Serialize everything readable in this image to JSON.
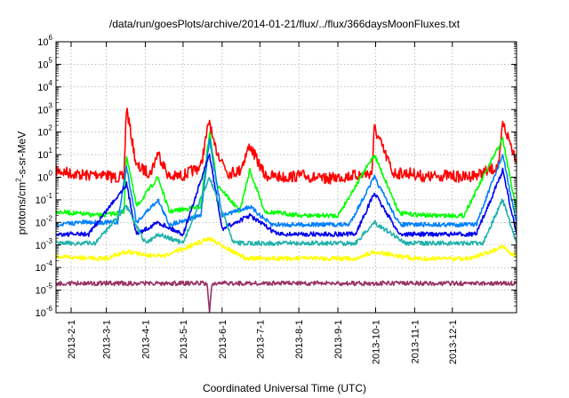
{
  "chart_data": {
    "type": "line",
    "title": "/data/run/goesPlots/archive/2014-01-21/flux/../flux/366daysMoonFluxes.txt",
    "xlabel": "Coordinated Universal Time (UTC)",
    "ylabel": "protons/cm2-s-sr-MeV",
    "ylabel_base": "protons/cm",
    "ylabel_sup": "2",
    "ylabel_rest": "-s-sr-MeV",
    "yscale": "log",
    "ylim": [
      1e-06,
      1000000.0
    ],
    "xlim": [
      "2013-01-20",
      "2014-01-21"
    ],
    "grid": true,
    "y_ticks": [
      {
        "value": 1e-06,
        "base": "10",
        "exp": "-6"
      },
      {
        "value": 1e-05,
        "base": "10",
        "exp": "-5"
      },
      {
        "value": 0.0001,
        "base": "10",
        "exp": "-4"
      },
      {
        "value": 0.001,
        "base": "10",
        "exp": "-3"
      },
      {
        "value": 0.01,
        "base": "10",
        "exp": "-2"
      },
      {
        "value": 0.1,
        "base": "10",
        "exp": "-1"
      },
      {
        "value": 1,
        "base": "10",
        "exp": "0"
      },
      {
        "value": 10,
        "base": "10",
        "exp": "1"
      },
      {
        "value": 100,
        "base": "10",
        "exp": "2"
      },
      {
        "value": 1000,
        "base": "10",
        "exp": "3"
      },
      {
        "value": 10000,
        "base": "10",
        "exp": "4"
      },
      {
        "value": 100000,
        "base": "10",
        "exp": "5"
      },
      {
        "value": 1000000,
        "base": "10",
        "exp": "6"
      }
    ],
    "x_ticks": [
      {
        "date": "2013-02-01",
        "label": "2013-2-1"
      },
      {
        "date": "2013-03-01",
        "label": "2013-3-1"
      },
      {
        "date": "2013-04-01",
        "label": "2013-4-1"
      },
      {
        "date": "2013-05-01",
        "label": "2013-5-1"
      },
      {
        "date": "2013-06-01",
        "label": "2013-6-1"
      },
      {
        "date": "2013-07-01",
        "label": "2013-7-1"
      },
      {
        "date": "2013-08-01",
        "label": "2013-8-1"
      },
      {
        "date": "2013-09-01",
        "label": "2013-9-1"
      },
      {
        "date": "2013-10-01",
        "label": "2013-10-1"
      },
      {
        "date": "2013-11-01",
        "label": "2013-11-1"
      },
      {
        "date": "2013-12-01",
        "label": "2013-12-1"
      }
    ],
    "series": [
      {
        "color": "#ff0000",
        "x": [
          "2013-01-20",
          "2013-02-01",
          "2013-02-14",
          "2013-02-25",
          "2013-03-06",
          "2013-03-15",
          "2013-03-17",
          "2013-03-25",
          "2013-04-05",
          "2013-04-11",
          "2013-04-20",
          "2013-05-01",
          "2013-05-15",
          "2013-05-22",
          "2013-05-25",
          "2013-06-06",
          "2013-06-15",
          "2013-06-23",
          "2013-07-05",
          "2013-07-20",
          "2013-08-05",
          "2013-08-20",
          "2013-09-01",
          "2013-09-15",
          "2013-09-28",
          "2013-09-30",
          "2013-10-15",
          "2013-10-29",
          "2013-11-10",
          "2013-11-25",
          "2013-12-10",
          "2013-12-25",
          "2014-01-07",
          "2014-01-10",
          "2014-01-21"
        ],
        "y": [
          2,
          1.5,
          1.2,
          1.5,
          1,
          1,
          1200,
          3,
          1.5,
          12,
          1,
          1.2,
          3,
          350,
          30,
          1.5,
          2,
          25,
          1.2,
          1,
          1.2,
          0.8,
          1,
          1.2,
          1.5,
          150,
          1.5,
          1.5,
          1,
          1.2,
          1,
          1.5,
          3,
          250,
          6
        ]
      },
      {
        "color": "#00ff00",
        "x": [
          "2013-01-20",
          "2013-02-05",
          "2013-02-25",
          "2013-03-15",
          "2013-03-17",
          "2013-03-25",
          "2013-04-11",
          "2013-04-20",
          "2013-05-15",
          "2013-05-22",
          "2013-05-28",
          "2013-06-15",
          "2013-06-23",
          "2013-07-05",
          "2013-08-05",
          "2013-09-01",
          "2013-09-30",
          "2013-10-20",
          "2013-11-15",
          "2013-12-10",
          "2014-01-10",
          "2014-01-21"
        ],
        "y": [
          0.03,
          0.025,
          0.02,
          0.03,
          10,
          0.05,
          1,
          0.03,
          0.05,
          100,
          0.5,
          0.03,
          2,
          0.03,
          0.02,
          0.02,
          10,
          0.025,
          0.02,
          0.02,
          50,
          0.03
        ]
      },
      {
        "color": "#0080ff",
        "x": [
          "2013-01-20",
          "2013-02-10",
          "2013-03-10",
          "2013-03-17",
          "2013-03-25",
          "2013-04-11",
          "2013-04-20",
          "2013-05-15",
          "2013-05-22",
          "2013-06-01",
          "2013-06-23",
          "2013-07-10",
          "2013-08-10",
          "2013-09-10",
          "2013-09-30",
          "2013-10-20",
          "2013-11-20",
          "2013-12-20",
          "2014-01-10",
          "2014-01-21"
        ],
        "y": [
          0.008,
          0.01,
          0.01,
          3,
          0.01,
          0.1,
          0.008,
          0.02,
          50,
          0.02,
          0.05,
          0.008,
          0.008,
          0.008,
          1,
          0.008,
          0.008,
          0.008,
          10,
          0.008
        ]
      },
      {
        "color": "#0000ee",
        "x": [
          "2013-01-20",
          "2013-02-15",
          "2013-03-17",
          "2013-03-25",
          "2013-04-11",
          "2013-05-01",
          "2013-05-22",
          "2013-06-01",
          "2013-06-23",
          "2013-07-15",
          "2013-08-15",
          "2013-09-15",
          "2013-09-30",
          "2013-10-20",
          "2013-11-20",
          "2013-12-20",
          "2014-01-10",
          "2014-01-21"
        ],
        "y": [
          0.003,
          0.003,
          0.5,
          0.003,
          0.01,
          0.003,
          10,
          0.005,
          0.02,
          0.003,
          0.003,
          0.003,
          0.2,
          0.003,
          0.003,
          0.003,
          2,
          0.003
        ]
      },
      {
        "color": "#20b2aa",
        "x": [
          "2013-01-20",
          "2013-02-20",
          "2013-03-17",
          "2013-04-01",
          "2013-04-11",
          "2013-05-01",
          "2013-05-22",
          "2013-06-10",
          "2013-07-15",
          "2013-08-15",
          "2013-09-15",
          "2013-09-30",
          "2013-10-25",
          "2013-11-25",
          "2013-12-25",
          "2014-01-10",
          "2014-01-21"
        ],
        "y": [
          0.0012,
          0.0012,
          0.05,
          0.0012,
          0.003,
          0.0012,
          1,
          0.0012,
          0.0012,
          0.0012,
          0.0012,
          0.01,
          0.0012,
          0.0012,
          0.0012,
          0.1,
          0.0012
        ]
      },
      {
        "color": "#ffff00",
        "x": [
          "2013-01-20",
          "2013-03-01",
          "2013-03-17",
          "2013-04-15",
          "2013-05-22",
          "2013-06-20",
          "2013-08-01",
          "2013-09-15",
          "2013-09-30",
          "2013-11-01",
          "2013-12-15",
          "2014-01-10",
          "2014-01-21"
        ],
        "y": [
          0.0003,
          0.00025,
          0.0005,
          0.0003,
          0.002,
          0.00025,
          0.00025,
          0.00025,
          0.0005,
          0.00025,
          0.00025,
          0.0008,
          0.0003
        ]
      },
      {
        "color": "#993366",
        "x": [
          "2013-01-20",
          "2013-03-01",
          "2013-04-15",
          "2013-05-20",
          "2013-05-22",
          "2013-05-24",
          "2013-07-01",
          "2013-08-15",
          "2013-10-01",
          "2013-11-15",
          "2014-01-01",
          "2014-01-21"
        ],
        "y": [
          2e-05,
          2e-05,
          2e-05,
          2e-05,
          1e-06,
          2e-05,
          2e-05,
          2e-05,
          2e-05,
          2e-05,
          2e-05,
          2e-05
        ]
      }
    ]
  }
}
